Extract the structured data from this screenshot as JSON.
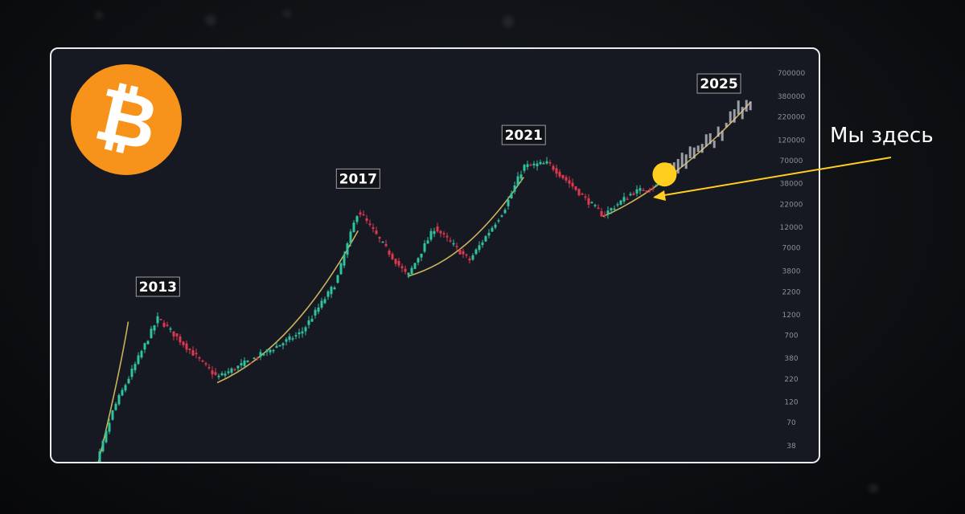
{
  "annotation": {
    "text": "Мы здесь"
  },
  "logo": {
    "glyph": "₿",
    "color": "#f7931a"
  },
  "colors": {
    "background": "#101215",
    "card": "#161822",
    "up_candle": "#2ec4a0",
    "down_candle": "#e0384f",
    "projection": "#c8cbd2",
    "trend_curve": "#c9b25a",
    "marker": "#ffce1f"
  },
  "chart_data": {
    "type": "line",
    "yscale": "log",
    "y_ticks": [
      38,
      70,
      120,
      220,
      380,
      700,
      1200,
      2200,
      3800,
      7000,
      12000,
      22000,
      38000,
      70000,
      120000,
      220000,
      380000,
      700000
    ],
    "x": [
      2012.3,
      2013.0,
      2013.9,
      2014.5,
      2015.1,
      2016.0,
      2016.8,
      2017.5,
      2017.95,
      2018.5,
      2018.95,
      2019.5,
      2020.2,
      2020.9,
      2021.3,
      2021.8,
      2022.3,
      2022.9,
      2023.5,
      2024.0
    ],
    "series": [
      {
        "values": [
          5,
          100,
          1100,
          500,
          230,
          420,
          750,
          2800,
          19000,
          7000,
          3300,
          12000,
          5000,
          19000,
          60000,
          65000,
          35000,
          16500,
          30000,
          36000
        ]
      }
    ],
    "projection": {
      "x": [
        2024.0,
        2024.5,
        2024.9,
        2025.3,
        2025.9
      ],
      "values": [
        36000,
        55000,
        85000,
        130000,
        300000
      ]
    },
    "year_labels": [
      "2013",
      "2017",
      "2021",
      "2025"
    ],
    "annotation_point": {
      "x": 2024.15,
      "value": 36000
    }
  }
}
